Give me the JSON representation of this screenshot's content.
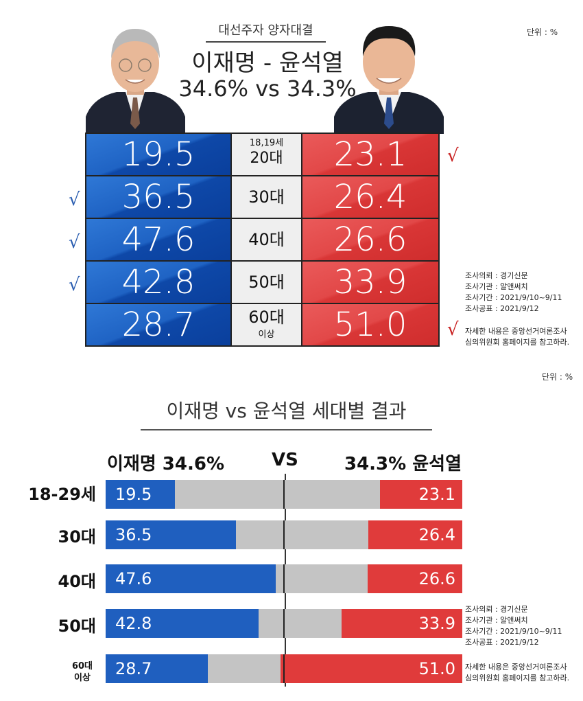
{
  "top": {
    "unit": "단위 : %",
    "subtitle": "대선주자 양자대결",
    "title": "이재명 - 윤석열",
    "percent": "34.6% vs 34.3%",
    "check_mark": "√",
    "rows": [
      {
        "age_top": "18,19세",
        "age_main": "20대",
        "age_bottom": "",
        "left": "19.5",
        "right": "23.1",
        "check_left": false,
        "check_right": true
      },
      {
        "age_top": "",
        "age_main": "30대",
        "age_bottom": "",
        "left": "36.5",
        "right": "26.4",
        "check_left": true,
        "check_right": false
      },
      {
        "age_top": "",
        "age_main": "40대",
        "age_bottom": "",
        "left": "47.6",
        "right": "26.6",
        "check_left": true,
        "check_right": false
      },
      {
        "age_top": "",
        "age_main": "50대",
        "age_bottom": "",
        "left": "42.8",
        "right": "33.9",
        "check_left": true,
        "check_right": false
      },
      {
        "age_top": "",
        "age_main": "60대",
        "age_bottom": "이상",
        "left": "28.7",
        "right": "51.0",
        "check_left": false,
        "check_right": true
      }
    ],
    "info": [
      "조사의뢰 : 경기신문",
      "조사기관 : 알앤써치",
      "조사기간 : 2021/9/10~9/11",
      "조사공표 : 2021/9/12"
    ],
    "note": [
      "자세한 내용은 중앙선거여론조사",
      "심의위원회 홈페이지를 참고하라."
    ],
    "colors": {
      "blue": "#1f5fbf",
      "red": "#e03b3b"
    }
  },
  "bottom": {
    "unit": "단위 : %",
    "title": "이재명 vs 윤석열 세대별 결과",
    "header_left": "이재명 34.6%",
    "header_vs": "VS",
    "header_right": "34.3% 윤석열",
    "rows": [
      {
        "label": "18-29세",
        "label2": ""
      },
      {
        "label": "30대",
        "label2": ""
      },
      {
        "label": "40대",
        "label2": ""
      },
      {
        "label": "50대",
        "label2": ""
      },
      {
        "label": "60대",
        "label2": "이상"
      }
    ],
    "info": [
      "조사의뢰 : 경기신문",
      "조사기관 : 알앤써치",
      "조사기간 : 2021/9/10~9/11",
      "조사공표 : 2021/9/12"
    ],
    "note": [
      "자세한 내용은 중앙선거여론조사",
      "심의위원회 홈페이지를 참고하라."
    ]
  },
  "chart_data": {
    "type": "bar",
    "title": "이재명 vs 윤석열 세대별 결과",
    "categories": [
      "18-29세",
      "30대",
      "40대",
      "50대",
      "60대 이상"
    ],
    "series": [
      {
        "name": "이재명",
        "values": [
          19.5,
          36.5,
          47.6,
          42.8,
          28.7
        ],
        "color": "#1f5fbf"
      },
      {
        "name": "윤석열",
        "values": [
          23.1,
          26.4,
          26.6,
          33.9,
          51.0
        ],
        "color": "#e03b3b"
      }
    ],
    "ylim": [
      0,
      100
    ]
  }
}
